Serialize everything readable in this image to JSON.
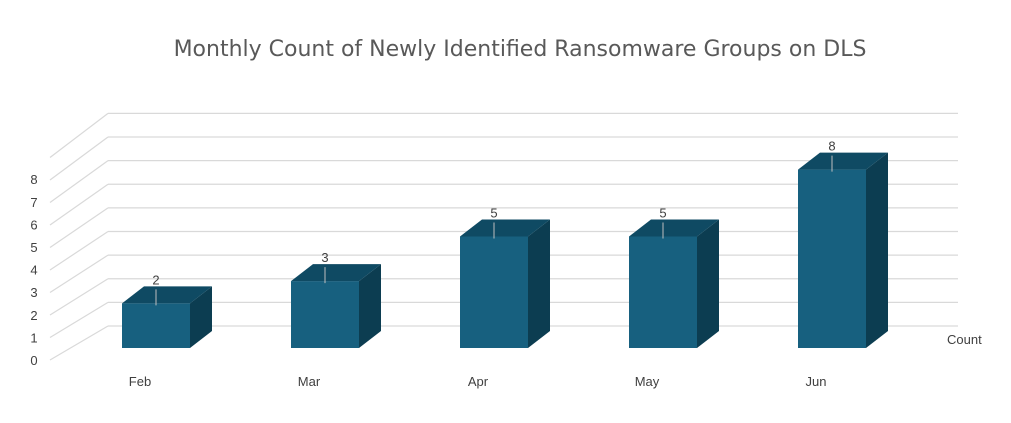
{
  "chart_data": {
    "type": "bar",
    "title": "Monthly Count of Newly Identified Ransomware Groups on DLS",
    "categories": [
      "Feb",
      "Mar",
      "Apr",
      "May",
      "Jun"
    ],
    "series": [
      {
        "name": "Count",
        "values": [
          2,
          3,
          5,
          5,
          8
        ]
      }
    ],
    "yticks": [
      "0",
      "1",
      "2",
      "3",
      "4",
      "5",
      "6",
      "7",
      "8"
    ],
    "ylim": [
      0,
      8
    ],
    "grid": true,
    "legend": "right",
    "three_d": true,
    "colors": {
      "bar_front": "#17607F",
      "bar_top": "#0F4A63",
      "bar_side": "#0C3D51",
      "grid": "#D9D9D9",
      "text": "#404040"
    }
  }
}
